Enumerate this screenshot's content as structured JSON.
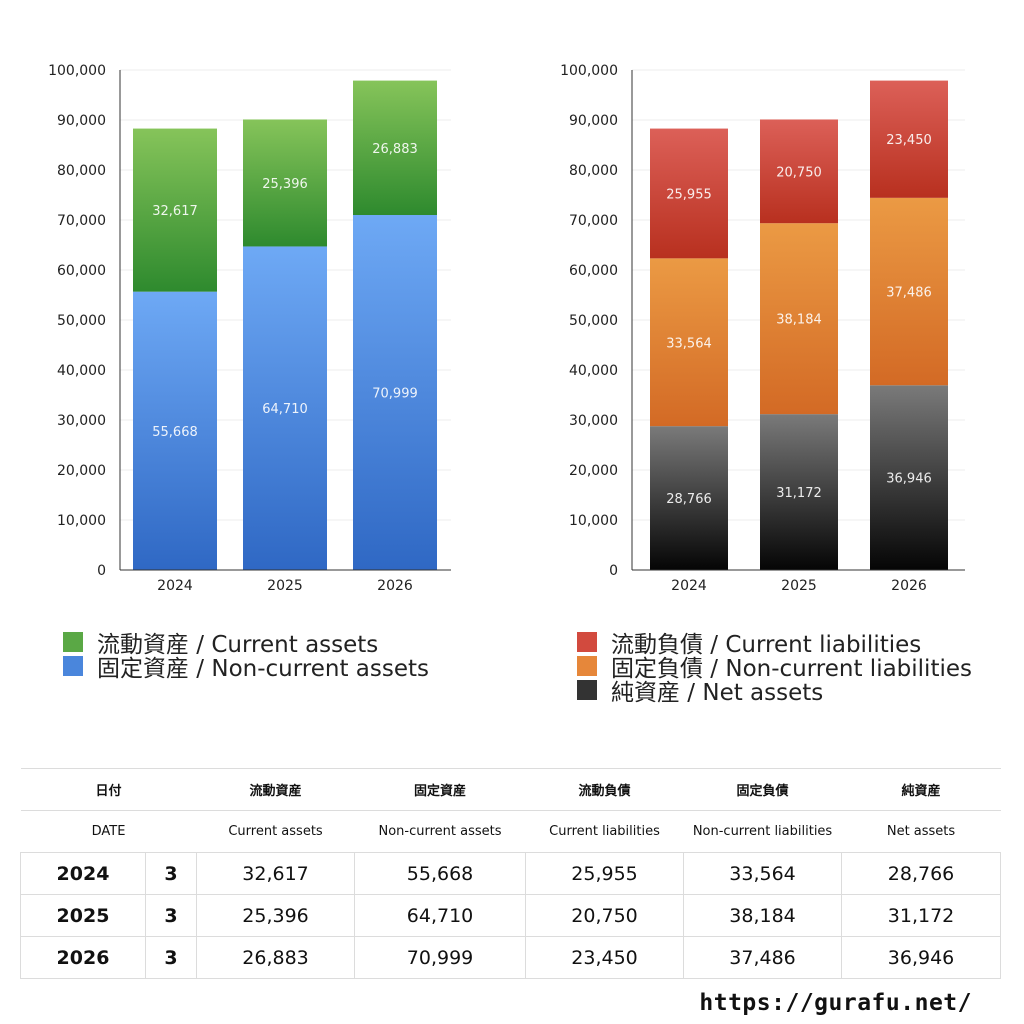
{
  "chart_data": [
    {
      "type": "bar",
      "stacked": true,
      "categories": [
        "2024",
        "2025",
        "2026"
      ],
      "ylim": [
        0,
        100000
      ],
      "yticks": [
        "0",
        "10,000",
        "20,000",
        "30,000",
        "40,000",
        "50,000",
        "60,000",
        "70,000",
        "80,000",
        "90,000",
        "100,000"
      ],
      "grid": true,
      "legend_position": "bottom",
      "series": [
        {
          "name": "固定資産 / Non-current assets",
          "values": [
            55668,
            64710,
            70999
          ],
          "labels": [
            "55,668",
            "64,710",
            "70,999"
          ],
          "color_top": "#6ea9f5",
          "color_bottom": "#2f68c4"
        },
        {
          "name": "流動資産 / Current assets",
          "values": [
            32617,
            25396,
            26883
          ],
          "labels": [
            "32,617",
            "25,396",
            "26,883"
          ],
          "color_top": "#86c45a",
          "color_bottom": "#2e8a2e"
        }
      ]
    },
    {
      "type": "bar",
      "stacked": true,
      "categories": [
        "2024",
        "2025",
        "2026"
      ],
      "ylim": [
        0,
        100000
      ],
      "yticks": [
        "0",
        "10,000",
        "20,000",
        "30,000",
        "40,000",
        "50,000",
        "60,000",
        "70,000",
        "80,000",
        "90,000",
        "100,000"
      ],
      "grid": true,
      "legend_position": "bottom",
      "series": [
        {
          "name": "純資産 / Net assets",
          "values": [
            28766,
            31172,
            36946
          ],
          "labels": [
            "28,766",
            "31,172",
            "36,946"
          ],
          "color_top": "#7a7a7a",
          "color_bottom": "#050505"
        },
        {
          "name": "固定負債 / Non-current liabilities",
          "values": [
            33564,
            38184,
            37486
          ],
          "labels": [
            "33,564",
            "38,184",
            "37,486"
          ],
          "color_top": "#eb9a44",
          "color_bottom": "#d36a25"
        },
        {
          "name": "流動負債 / Current liabilities",
          "values": [
            25955,
            20750,
            23450
          ],
          "labels": [
            "25,955",
            "20,750",
            "23,450"
          ],
          "color_top": "#dc6058",
          "color_bottom": "#b8301f"
        }
      ]
    }
  ],
  "legend_left": [
    {
      "label": "流動資産 / Current assets",
      "color": "#5aa845"
    },
    {
      "label": "固定資産 / Non-current assets",
      "color": "#4a86dc"
    }
  ],
  "legend_right": [
    {
      "label": "流動負債 / Current liabilities",
      "color": "#d24a3e"
    },
    {
      "label": "固定負債 / Non-current liabilities",
      "color": "#e6873a"
    },
    {
      "label": "純資産 / Net assets",
      "color": "#333333"
    }
  ],
  "table": {
    "head_jp": [
      "日付",
      "流動資産",
      "固定資産",
      "流動負債",
      "固定負債",
      "純資産"
    ],
    "head_en": [
      "DATE",
      "Current assets",
      "Non-current assets",
      "Current liabilities",
      "Non-current liabilities",
      "Net assets"
    ],
    "rows": [
      {
        "year": "2024",
        "month": "3",
        "values": [
          "32,617",
          "55,668",
          "25,955",
          "33,564",
          "28,766"
        ]
      },
      {
        "year": "2025",
        "month": "3",
        "values": [
          "25,396",
          "64,710",
          "20,750",
          "38,184",
          "31,172"
        ]
      },
      {
        "year": "2026",
        "month": "3",
        "values": [
          "26,883",
          "70,999",
          "23,450",
          "37,486",
          "36,946"
        ]
      }
    ]
  },
  "footer": {
    "url": "https://gurafu.net/"
  }
}
